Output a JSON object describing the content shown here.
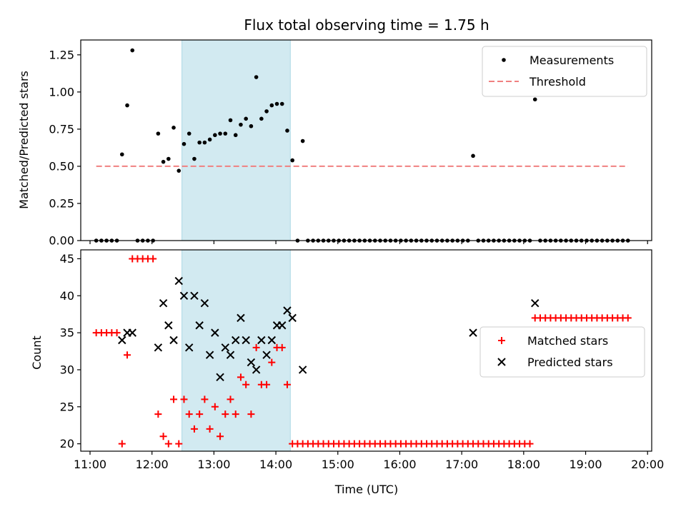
{
  "chart_data": [
    {
      "type": "scatter",
      "title": "Flux total observing time = 1.75 h",
      "xlabel": "",
      "ylabel": "Matched/Predicted stars",
      "xlim": [
        "10:51",
        "20:04"
      ],
      "ylim": [
        0,
        1.35
      ],
      "yticks": [
        "0.00",
        "0.25",
        "0.50",
        "0.75",
        "1.00",
        "1.25"
      ],
      "highlight_span": {
        "start": "12:29",
        "end": "14:14",
        "color": "#add8e6"
      },
      "legend": {
        "position": "top-right",
        "entries": [
          "Measurements",
          "Threshold"
        ]
      },
      "series": [
        {
          "name": "Measurements",
          "marker": "dot",
          "color": "#000000",
          "points": [
            [
              "11:06",
              0
            ],
            [
              "11:11",
              0
            ],
            [
              "11:16",
              0
            ],
            [
              "11:21",
              0
            ],
            [
              "11:26",
              0
            ],
            [
              "11:31",
              0.58
            ],
            [
              "11:36",
              0.91
            ],
            [
              "11:41",
              1.28
            ],
            [
              "11:46",
              0
            ],
            [
              "11:51",
              0
            ],
            [
              "11:56",
              0
            ],
            [
              "12:01",
              0
            ],
            [
              "12:06",
              0.72
            ],
            [
              "12:11",
              0.53
            ],
            [
              "12:16",
              0.55
            ],
            [
              "12:21",
              0.76
            ],
            [
              "12:26",
              0.47
            ],
            [
              "12:31",
              0.65
            ],
            [
              "12:36",
              0.72
            ],
            [
              "12:41",
              0.55
            ],
            [
              "12:46",
              0.66
            ],
            [
              "12:51",
              0.66
            ],
            [
              "12:56",
              0.68
            ],
            [
              "13:01",
              0.71
            ],
            [
              "13:06",
              0.72
            ],
            [
              "13:11",
              0.72
            ],
            [
              "13:16",
              0.81
            ],
            [
              "13:21",
              0.71
            ],
            [
              "13:26",
              0.78
            ],
            [
              "13:31",
              0.82
            ],
            [
              "13:36",
              0.77
            ],
            [
              "13:41",
              1.1
            ],
            [
              "13:46",
              0.82
            ],
            [
              "13:51",
              0.87
            ],
            [
              "13:56",
              0.91
            ],
            [
              "14:01",
              0.92
            ],
            [
              "14:06",
              0.92
            ],
            [
              "14:11",
              0.74
            ],
            [
              "14:16",
              0.54
            ],
            [
              "14:21",
              0
            ],
            [
              "14:26",
              0.67
            ],
            [
              "14:31",
              0
            ],
            [
              "14:36",
              0
            ],
            [
              "14:41",
              0
            ],
            [
              "14:46",
              0
            ],
            [
              "14:51",
              0
            ],
            [
              "14:56",
              0
            ],
            [
              "15:01",
              0
            ],
            [
              "15:06",
              0
            ],
            [
              "15:11",
              0
            ],
            [
              "15:16",
              0
            ],
            [
              "15:21",
              0
            ],
            [
              "15:26",
              0
            ],
            [
              "15:31",
              0
            ],
            [
              "15:36",
              0
            ],
            [
              "15:41",
              0
            ],
            [
              "15:46",
              0
            ],
            [
              "15:51",
              0
            ],
            [
              "15:56",
              0
            ],
            [
              "16:01",
              0
            ],
            [
              "16:06",
              0
            ],
            [
              "16:11",
              0
            ],
            [
              "16:16",
              0
            ],
            [
              "16:21",
              0
            ],
            [
              "16:26",
              0
            ],
            [
              "16:31",
              0
            ],
            [
              "16:36",
              0
            ],
            [
              "16:41",
              0
            ],
            [
              "16:46",
              0
            ],
            [
              "16:51",
              0
            ],
            [
              "16:56",
              0
            ],
            [
              "17:01",
              0
            ],
            [
              "17:06",
              0
            ],
            [
              "17:11",
              0.57
            ],
            [
              "17:16",
              0
            ],
            [
              "17:21",
              0
            ],
            [
              "17:26",
              0
            ],
            [
              "17:31",
              0
            ],
            [
              "17:36",
              0
            ],
            [
              "17:41",
              0
            ],
            [
              "17:46",
              0
            ],
            [
              "17:51",
              0
            ],
            [
              "17:56",
              0
            ],
            [
              "18:01",
              0
            ],
            [
              "18:06",
              0
            ],
            [
              "18:11",
              0.95
            ],
            [
              "18:16",
              0
            ],
            [
              "18:21",
              0
            ],
            [
              "18:26",
              0
            ],
            [
              "18:31",
              0
            ],
            [
              "18:36",
              0
            ],
            [
              "18:41",
              0
            ],
            [
              "18:46",
              0
            ],
            [
              "18:51",
              0
            ],
            [
              "18:56",
              0
            ],
            [
              "19:01",
              0
            ],
            [
              "19:06",
              0
            ],
            [
              "19:11",
              0
            ],
            [
              "19:16",
              0
            ],
            [
              "19:21",
              0
            ],
            [
              "19:26",
              0
            ],
            [
              "19:31",
              0
            ],
            [
              "19:36",
              0
            ],
            [
              "19:41",
              0
            ]
          ]
        },
        {
          "name": "Threshold",
          "marker": "dashed-line",
          "color": "#f08080",
          "points": [
            [
              "11:06",
              0.5
            ],
            [
              "19:41",
              0.5
            ]
          ]
        }
      ]
    },
    {
      "type": "scatter",
      "title": "",
      "xlabel": "Time (UTC)",
      "ylabel": "Count",
      "xlim": [
        "10:51",
        "20:04"
      ],
      "ylim": [
        19,
        46.2
      ],
      "yticks": [
        "20",
        "25",
        "30",
        "35",
        "40",
        "45"
      ],
      "xticks": [
        "11:00",
        "12:00",
        "13:00",
        "14:00",
        "15:00",
        "16:00",
        "17:00",
        "18:00",
        "19:00",
        "20:00"
      ],
      "highlight_span": {
        "start": "12:29",
        "end": "14:14",
        "color": "#add8e6"
      },
      "legend": {
        "position": "right",
        "entries": [
          "Matched stars",
          "Predicted stars"
        ]
      },
      "series": [
        {
          "name": "Matched stars",
          "marker": "plus",
          "color": "#ff0000",
          "points": [
            [
              "11:06",
              35
            ],
            [
              "11:11",
              35
            ],
            [
              "11:16",
              35
            ],
            [
              "11:21",
              35
            ],
            [
              "11:26",
              35
            ],
            [
              "11:31",
              20
            ],
            [
              "11:36",
              32
            ],
            [
              "11:41",
              45
            ],
            [
              "11:46",
              45
            ],
            [
              "11:51",
              45
            ],
            [
              "11:56",
              45
            ],
            [
              "12:01",
              45
            ],
            [
              "12:06",
              24
            ],
            [
              "12:11",
              21
            ],
            [
              "12:16",
              20
            ],
            [
              "12:21",
              26
            ],
            [
              "12:26",
              20
            ],
            [
              "12:31",
              26
            ],
            [
              "12:36",
              24
            ],
            [
              "12:41",
              22
            ],
            [
              "12:46",
              24
            ],
            [
              "12:51",
              26
            ],
            [
              "12:56",
              22
            ],
            [
              "13:01",
              25
            ],
            [
              "13:06",
              21
            ],
            [
              "13:11",
              24
            ],
            [
              "13:16",
              26
            ],
            [
              "13:21",
              24
            ],
            [
              "13:26",
              29
            ],
            [
              "13:31",
              28
            ],
            [
              "13:36",
              24
            ],
            [
              "13:41",
              33
            ],
            [
              "13:46",
              28
            ],
            [
              "13:51",
              28
            ],
            [
              "13:56",
              31
            ],
            [
              "14:01",
              33
            ],
            [
              "14:06",
              33
            ],
            [
              "14:11",
              28
            ],
            [
              "14:16",
              20
            ],
            [
              "14:21",
              20
            ],
            [
              "14:26",
              20
            ],
            [
              "14:31",
              20
            ],
            [
              "14:36",
              20
            ],
            [
              "14:41",
              20
            ],
            [
              "14:46",
              20
            ],
            [
              "14:51",
              20
            ],
            [
              "14:56",
              20
            ],
            [
              "15:01",
              20
            ],
            [
              "15:06",
              20
            ],
            [
              "15:11",
              20
            ],
            [
              "15:16",
              20
            ],
            [
              "15:21",
              20
            ],
            [
              "15:26",
              20
            ],
            [
              "15:31",
              20
            ],
            [
              "15:36",
              20
            ],
            [
              "15:41",
              20
            ],
            [
              "15:46",
              20
            ],
            [
              "15:51",
              20
            ],
            [
              "15:56",
              20
            ],
            [
              "16:01",
              20
            ],
            [
              "16:06",
              20
            ],
            [
              "16:11",
              20
            ],
            [
              "16:16",
              20
            ],
            [
              "16:21",
              20
            ],
            [
              "16:26",
              20
            ],
            [
              "16:31",
              20
            ],
            [
              "16:36",
              20
            ],
            [
              "16:41",
              20
            ],
            [
              "16:46",
              20
            ],
            [
              "16:51",
              20
            ],
            [
              "16:56",
              20
            ],
            [
              "17:01",
              20
            ],
            [
              "17:06",
              20
            ],
            [
              "17:11",
              20
            ],
            [
              "17:16",
              20
            ],
            [
              "17:21",
              20
            ],
            [
              "17:26",
              20
            ],
            [
              "17:31",
              20
            ],
            [
              "17:36",
              20
            ],
            [
              "17:41",
              20
            ],
            [
              "17:46",
              20
            ],
            [
              "17:51",
              20
            ],
            [
              "17:56",
              20
            ],
            [
              "18:01",
              20
            ],
            [
              "18:06",
              20
            ],
            [
              "18:11",
              37
            ],
            [
              "18:16",
              37
            ],
            [
              "18:21",
              37
            ],
            [
              "18:26",
              37
            ],
            [
              "18:31",
              37
            ],
            [
              "18:36",
              37
            ],
            [
              "18:41",
              37
            ],
            [
              "18:46",
              37
            ],
            [
              "18:51",
              37
            ],
            [
              "18:56",
              37
            ],
            [
              "19:01",
              37
            ],
            [
              "19:06",
              37
            ],
            [
              "19:11",
              37
            ],
            [
              "19:16",
              37
            ],
            [
              "19:21",
              37
            ],
            [
              "19:26",
              37
            ],
            [
              "19:31",
              37
            ],
            [
              "19:36",
              37
            ],
            [
              "19:41",
              37
            ]
          ]
        },
        {
          "name": "Predicted stars",
          "marker": "x",
          "color": "#000000",
          "points": [
            [
              "11:31",
              34
            ],
            [
              "11:36",
              35
            ],
            [
              "11:41",
              35
            ],
            [
              "12:06",
              33
            ],
            [
              "12:11",
              39
            ],
            [
              "12:16",
              36
            ],
            [
              "12:21",
              34
            ],
            [
              "12:26",
              42
            ],
            [
              "12:31",
              40
            ],
            [
              "12:36",
              33
            ],
            [
              "12:41",
              40
            ],
            [
              "12:46",
              36
            ],
            [
              "12:51",
              39
            ],
            [
              "12:56",
              32
            ],
            [
              "13:01",
              35
            ],
            [
              "13:06",
              29
            ],
            [
              "13:11",
              33
            ],
            [
              "13:16",
              32
            ],
            [
              "13:21",
              34
            ],
            [
              "13:26",
              37
            ],
            [
              "13:31",
              34
            ],
            [
              "13:36",
              31
            ],
            [
              "13:41",
              30
            ],
            [
              "13:46",
              34
            ],
            [
              "13:51",
              32
            ],
            [
              "13:56",
              34
            ],
            [
              "14:01",
              36
            ],
            [
              "14:06",
              36
            ],
            [
              "14:11",
              38
            ],
            [
              "14:16",
              37
            ],
            [
              "14:26",
              30
            ],
            [
              "17:11",
              35
            ],
            [
              "18:11",
              39
            ]
          ]
        }
      ]
    }
  ]
}
